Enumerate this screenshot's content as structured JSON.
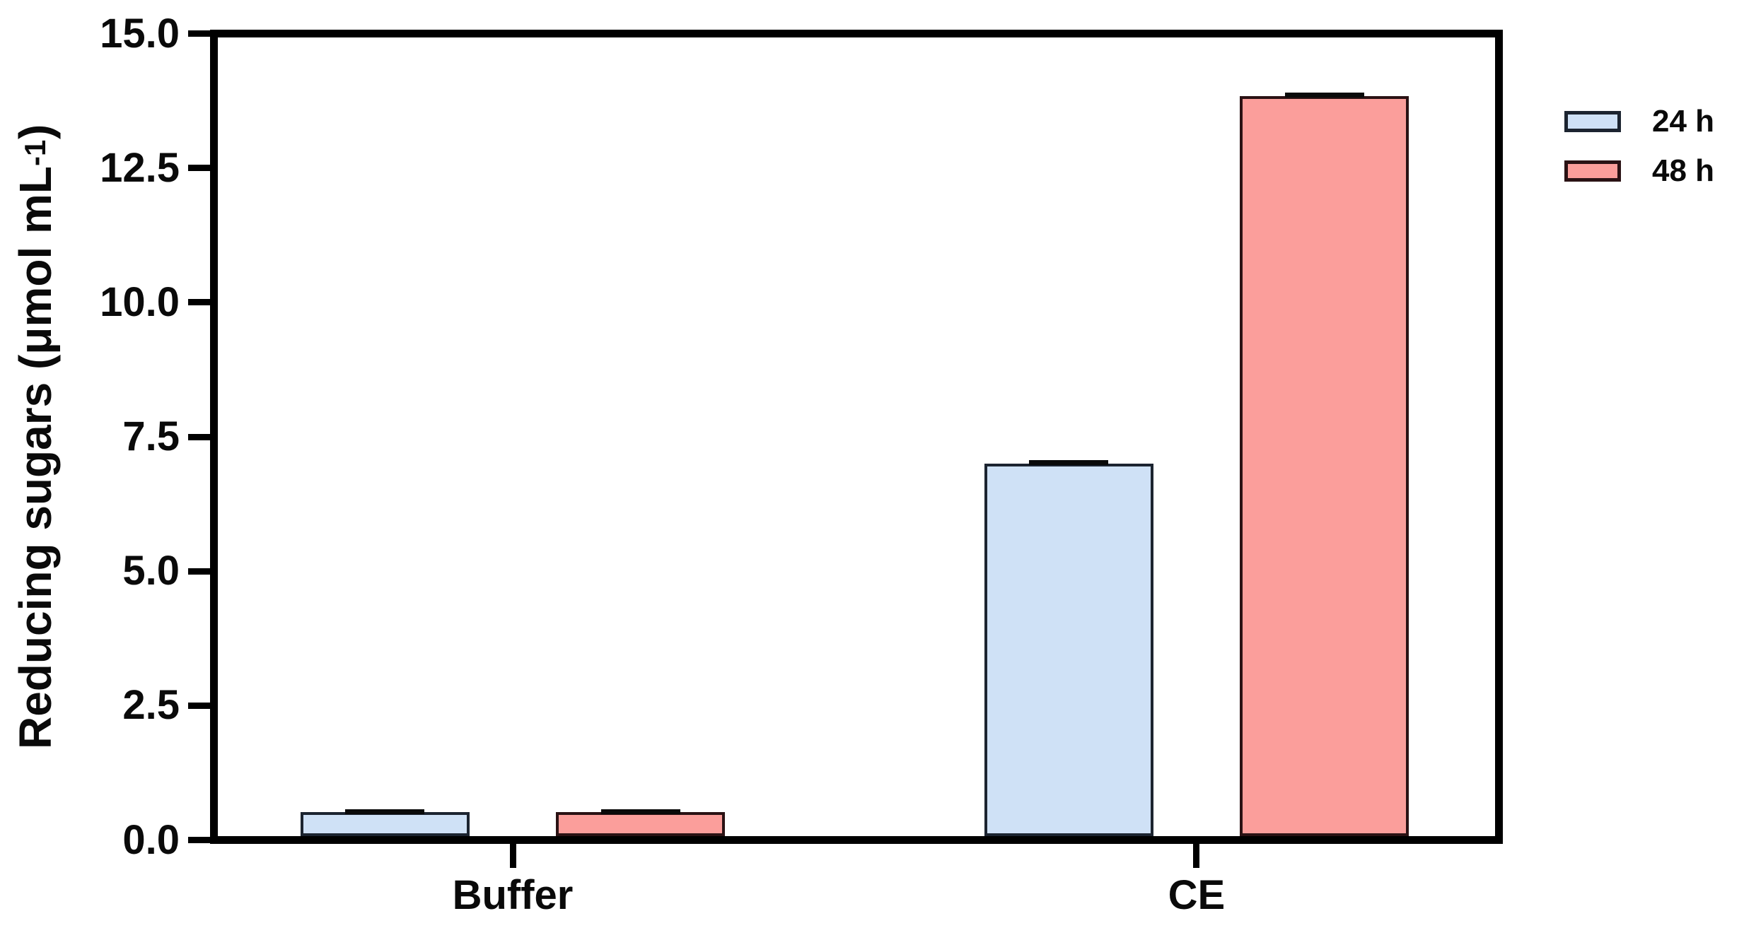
{
  "chart_data": {
    "type": "bar",
    "title": "",
    "xlabel": "",
    "ylabel": {
      "text": "Reducing sugars (μmol mL",
      "superscript": "-1",
      "suffix": ")"
    },
    "categories": [
      "Buffer",
      "CE"
    ],
    "series": [
      {
        "name": "24 h",
        "color": "#CFE1F6",
        "edge_color": "#1C2430",
        "values": [
          0.45,
          7.0
        ],
        "errors": [
          0.06,
          0.06
        ]
      },
      {
        "name": "48 h",
        "color": "#FB9E9B",
        "edge_color": "#2A1214",
        "values": [
          0.45,
          13.9
        ],
        "errors": [
          0.06,
          0.06
        ]
      }
    ],
    "ylim": [
      0,
      15
    ],
    "ytick_labels": [
      "0.0",
      "2.5",
      "5.0",
      "7.5",
      "10.0",
      "12.5",
      "15.0"
    ],
    "ytick_values": [
      0,
      2.5,
      5,
      7.5,
      10,
      12.5,
      15
    ],
    "grid": false,
    "error_bars": true,
    "legend_position": "outside-top-right",
    "axis_color": "#000000",
    "background_color": "#FFFFFF"
  }
}
